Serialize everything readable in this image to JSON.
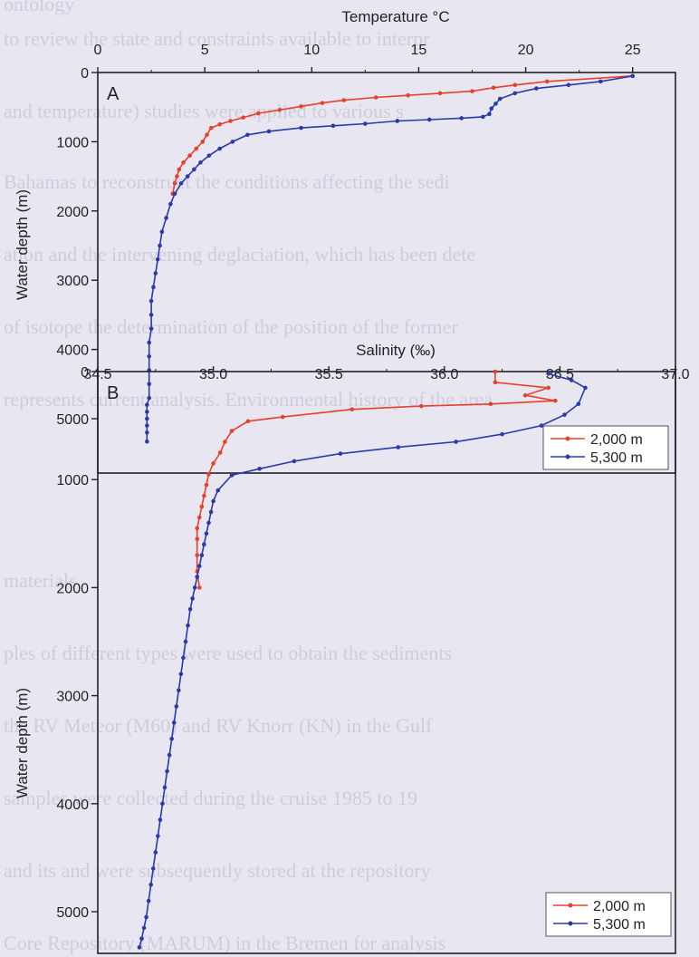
{
  "background_text": [
    "ontology",
    "to review the state and constraints available to interpr",
    "and temperature) studies were applied to various s",
    "Bahamas to reconstruct the conditions affecting the sedi",
    "ation and the intervening deglaciation, which has been dete",
    "of isotope the determination of the position of the former",
    "represents current analysis. Environmental history of the area",
    "materials",
    "ples of different types were used to obtain the sediments",
    "the RV Meteor (M60) and RV Knorr (KN) in the Gulf",
    "samples were collected during the cruise 1985 to 19",
    "and its and were subsequently stored at the repository",
    "Core Repository (MARUM) in the Bremen for analysis"
  ],
  "colors": {
    "series_2000": "#e8402a",
    "series_5300": "#2a3aa8",
    "axis": "#222222"
  },
  "chart_data": [
    {
      "type": "line",
      "panel_label": "A",
      "title": "Temperature °C",
      "xlabel": "Temperature °C",
      "ylabel": "Water depth (m)",
      "xlim": [
        0,
        27
      ],
      "ylim": [
        0,
        5500
      ],
      "y_inverted": true,
      "x_ticks": [
        0,
        5,
        10,
        15,
        20,
        25
      ],
      "x_tick_labels": [
        "0",
        "5",
        "10",
        "15",
        "20",
        "25"
      ],
      "y_ticks": [
        0,
        1000,
        2000,
        3000,
        4000,
        5000
      ],
      "y_tick_labels": [
        "0",
        "1000",
        "2000",
        "3000",
        "4000",
        "5000"
      ],
      "x_axis_position": "top",
      "legend_position": "bottom-right",
      "series": [
        {
          "name": "2,000 m",
          "color": "#e8402a",
          "x": [
            25.0,
            21.0,
            19.5,
            18.5,
            17.5,
            16.0,
            14.5,
            13.0,
            11.5,
            10.5,
            9.5,
            8.5,
            7.5,
            6.8,
            6.2,
            5.7,
            5.3,
            5.1,
            4.9,
            4.6,
            4.3,
            4.0,
            3.8,
            3.7,
            3.6,
            3.5
          ],
          "y": [
            50,
            130,
            180,
            220,
            270,
            300,
            330,
            360,
            400,
            440,
            490,
            540,
            590,
            650,
            700,
            750,
            800,
            900,
            1000,
            1100,
            1200,
            1300,
            1400,
            1500,
            1600,
            1750
          ]
        },
        {
          "name": "5,300 m",
          "color": "#2a3aa8",
          "x": [
            25.0,
            23.5,
            22.0,
            20.5,
            19.5,
            18.8,
            18.6,
            18.4,
            18.3,
            18.0,
            17.0,
            15.5,
            14.0,
            12.5,
            11.0,
            9.5,
            8.0,
            7.0,
            6.3,
            5.7,
            5.2,
            4.8,
            4.5,
            4.2,
            3.9,
            3.6,
            3.4,
            3.2,
            3.0,
            2.9,
            2.8,
            2.7,
            2.6,
            2.5,
            2.5,
            2.5,
            2.4,
            2.4,
            2.4,
            2.4,
            2.4,
            2.3,
            2.3,
            2.3,
            2.3,
            2.3,
            2.3
          ],
          "y": [
            50,
            130,
            180,
            230,
            300,
            380,
            450,
            520,
            600,
            640,
            660,
            680,
            700,
            740,
            770,
            800,
            850,
            900,
            1000,
            1100,
            1200,
            1300,
            1400,
            1500,
            1600,
            1750,
            1900,
            2100,
            2300,
            2500,
            2700,
            2900,
            3100,
            3300,
            3500,
            3700,
            3900,
            4100,
            4300,
            4500,
            4700,
            4800,
            4900,
            5000,
            5100,
            5200,
            5330
          ]
        }
      ]
    },
    {
      "type": "line",
      "panel_label": "B",
      "title": "Salinity (‰)",
      "xlabel": "Salinity (‰)",
      "ylabel": "Water depth (m)",
      "xlim": [
        34.5,
        37.0
      ],
      "ylim": [
        0,
        5500
      ],
      "y_inverted": true,
      "x_ticks": [
        34.5,
        35.0,
        35.5,
        36.0,
        36.5,
        37.0
      ],
      "x_tick_labels": [
        "34.5",
        "35.0",
        "35.5",
        "36.0",
        "36.5",
        "37.0"
      ],
      "y_ticks": [
        0,
        1000,
        2000,
        3000,
        4000,
        5000
      ],
      "y_tick_labels": [
        "0",
        "1000",
        "2000",
        "3000",
        "4000",
        "5000"
      ],
      "x_axis_position": "top",
      "legend_position": "bottom-right",
      "series": [
        {
          "name": "2,000 m",
          "color": "#e8402a",
          "x": [
            36.22,
            36.22,
            36.45,
            36.35,
            36.48,
            36.2,
            35.9,
            35.6,
            35.3,
            35.15,
            35.08,
            35.05,
            35.03,
            35.0,
            34.98,
            34.97,
            34.96,
            34.95,
            34.94,
            34.93,
            34.93,
            34.93,
            34.93,
            34.94
          ],
          "y": [
            0,
            100,
            150,
            220,
            270,
            300,
            320,
            350,
            420,
            460,
            550,
            650,
            750,
            850,
            950,
            1050,
            1150,
            1250,
            1350,
            1450,
            1550,
            1700,
            1850,
            2000
          ]
        },
        {
          "name": "5,300 m",
          "color": "#2a3aa8",
          "x": [
            36.45,
            36.55,
            36.61,
            36.58,
            36.52,
            36.42,
            36.25,
            36.05,
            35.8,
            35.55,
            35.35,
            35.2,
            35.08,
            35.02,
            35.0,
            34.99,
            34.98,
            34.97,
            34.96,
            34.95,
            34.94,
            34.93,
            34.92,
            34.91,
            34.9,
            34.89,
            34.88,
            34.87,
            34.86,
            34.85,
            34.84,
            34.83,
            34.82,
            34.81,
            34.8,
            34.79,
            34.78,
            34.77,
            34.76,
            34.75,
            34.74,
            34.73,
            34.72,
            34.71,
            34.7,
            34.69,
            34.68
          ],
          "y": [
            20,
            80,
            150,
            300,
            400,
            500,
            580,
            650,
            700,
            760,
            830,
            900,
            960,
            1100,
            1200,
            1300,
            1400,
            1500,
            1600,
            1700,
            1800,
            1900,
            2000,
            2100,
            2200,
            2350,
            2500,
            2650,
            2800,
            2950,
            3100,
            3250,
            3400,
            3550,
            3700,
            3850,
            4000,
            4150,
            4300,
            4450,
            4600,
            4750,
            4900,
            5050,
            5150,
            5250,
            5330
          ]
        }
      ]
    }
  ]
}
